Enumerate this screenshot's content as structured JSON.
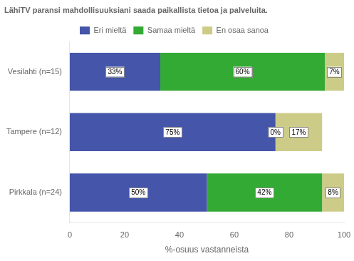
{
  "chart_data": {
    "type": "bar",
    "orientation": "horizontal",
    "stacked": true,
    "title": "LähiTV paransi mahdollisuuksiani saada paikallista tietoa ja palveluita.",
    "categories": [
      "Vesilahti (n=15)",
      "Tampere (n=12)",
      "Pirkkala (n=24)"
    ],
    "series": [
      {
        "name": "Eri mieltä",
        "color": "#4455AA",
        "values": [
          33,
          75,
          50
        ],
        "value_labels": [
          "33%",
          "75%",
          "50%"
        ]
      },
      {
        "name": "Samaa mieltä",
        "color": "#33AA33",
        "values": [
          60,
          0,
          42
        ],
        "value_labels": [
          "60%",
          "0%",
          "42%"
        ]
      },
      {
        "name": "En osaa sanoa",
        "color": "#CCCC88",
        "values": [
          7,
          17,
          8
        ],
        "value_labels": [
          "7%",
          "17%",
          "8%"
        ]
      }
    ],
    "xlabel": "%-osuus vastanneista",
    "xlim": [
      0,
      100
    ],
    "xticks": [
      0,
      20,
      40,
      60,
      80,
      100
    ],
    "data_labels": true,
    "grid": false,
    "legend": "top"
  }
}
